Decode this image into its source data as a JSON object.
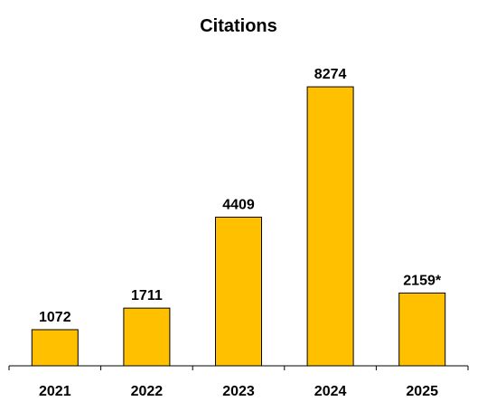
{
  "chart_data": {
    "type": "bar",
    "title": "Citations",
    "categories": [
      "2021",
      "2022",
      "2023",
      "2024",
      "2025"
    ],
    "values": [
      1072,
      1711,
      4409,
      8274,
      2159
    ],
    "data_labels": [
      "1072",
      "1711",
      "4409",
      "8274",
      "2159*"
    ],
    "xlabel": "",
    "ylabel": "",
    "ylim": [
      0,
      9000
    ],
    "grid": false,
    "legend": "none",
    "bar_color": "#FFC000",
    "bar_edge_color": "#000000"
  }
}
